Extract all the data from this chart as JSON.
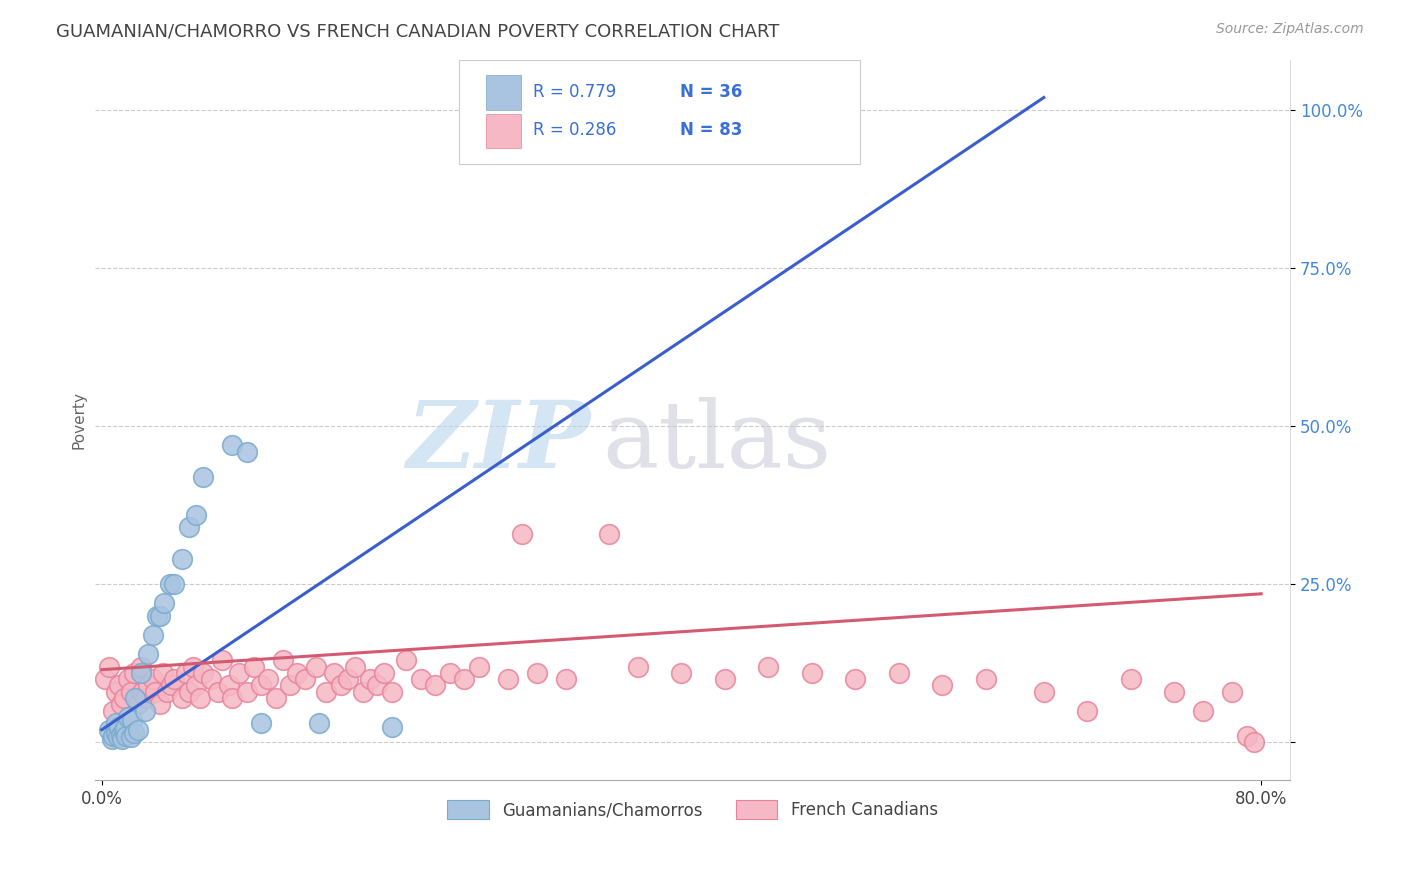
{
  "title": "GUAMANIAN/CHAMORRO VS FRENCH CANADIAN POVERTY CORRELATION CHART",
  "source": "Source: ZipAtlas.com",
  "ylabel": "Poverty",
  "legend_r_blue": "R = 0.779",
  "legend_n_blue": "N = 36",
  "legend_r_pink": "R = 0.286",
  "legend_n_pink": "N = 83",
  "blue_color": "#a8c4e0",
  "blue_edge_color": "#7aaace",
  "pink_color": "#f5b8c4",
  "pink_edge_color": "#e8849a",
  "blue_line_color": "#3a5fcd",
  "pink_line_color": "#d45a72",
  "legend_text_color": "#3a6fd8",
  "legend_label_blue": "Guamanians/Chamorros",
  "legend_label_pink": "French Canadians",
  "background_color": "#ffffff",
  "grid_color": "#cccccc",
  "title_color": "#444444",
  "axis_label_color": "#666666",
  "tick_color_right": "#4488dd",
  "blue_scatter_x": [
    0.005,
    0.007,
    0.008,
    0.01,
    0.01,
    0.011,
    0.012,
    0.013,
    0.014,
    0.015,
    0.016,
    0.017,
    0.018,
    0.02,
    0.021,
    0.022,
    0.023,
    0.025,
    0.027,
    0.03,
    0.032,
    0.035,
    0.038,
    0.04,
    0.043,
    0.047,
    0.05,
    0.055,
    0.06,
    0.065,
    0.07,
    0.09,
    0.1,
    0.11,
    0.15,
    0.2
  ],
  "blue_scatter_y": [
    0.02,
    0.005,
    0.01,
    0.015,
    0.03,
    0.008,
    0.025,
    0.012,
    0.005,
    0.018,
    0.022,
    0.01,
    0.04,
    0.008,
    0.035,
    0.015,
    0.07,
    0.02,
    0.11,
    0.05,
    0.14,
    0.17,
    0.2,
    0.2,
    0.22,
    0.25,
    0.25,
    0.29,
    0.34,
    0.36,
    0.42,
    0.47,
    0.46,
    0.03,
    0.03,
    0.025
  ],
  "pink_scatter_x": [
    0.002,
    0.005,
    0.008,
    0.01,
    0.012,
    0.013,
    0.015,
    0.018,
    0.02,
    0.022,
    0.025,
    0.027,
    0.028,
    0.03,
    0.032,
    0.035,
    0.037,
    0.04,
    0.042,
    0.045,
    0.048,
    0.05,
    0.055,
    0.058,
    0.06,
    0.063,
    0.065,
    0.068,
    0.07,
    0.075,
    0.08,
    0.083,
    0.088,
    0.09,
    0.095,
    0.1,
    0.105,
    0.11,
    0.115,
    0.12,
    0.125,
    0.13,
    0.135,
    0.14,
    0.148,
    0.155,
    0.16,
    0.165,
    0.17,
    0.175,
    0.18,
    0.185,
    0.19,
    0.195,
    0.2,
    0.21,
    0.22,
    0.23,
    0.24,
    0.25,
    0.26,
    0.28,
    0.29,
    0.3,
    0.32,
    0.35,
    0.37,
    0.4,
    0.43,
    0.46,
    0.49,
    0.52,
    0.55,
    0.58,
    0.61,
    0.65,
    0.68,
    0.71,
    0.74,
    0.76,
    0.78,
    0.79,
    0.795
  ],
  "pink_scatter_y": [
    0.1,
    0.12,
    0.05,
    0.08,
    0.09,
    0.06,
    0.07,
    0.1,
    0.08,
    0.11,
    0.06,
    0.12,
    0.08,
    0.07,
    0.09,
    0.1,
    0.08,
    0.06,
    0.11,
    0.08,
    0.09,
    0.1,
    0.07,
    0.11,
    0.08,
    0.12,
    0.09,
    0.07,
    0.11,
    0.1,
    0.08,
    0.13,
    0.09,
    0.07,
    0.11,
    0.08,
    0.12,
    0.09,
    0.1,
    0.07,
    0.13,
    0.09,
    0.11,
    0.1,
    0.12,
    0.08,
    0.11,
    0.09,
    0.1,
    0.12,
    0.08,
    0.1,
    0.09,
    0.11,
    0.08,
    0.13,
    0.1,
    0.09,
    0.11,
    0.1,
    0.12,
    0.1,
    0.33,
    0.11,
    0.1,
    0.33,
    0.12,
    0.11,
    0.1,
    0.12,
    0.11,
    0.1,
    0.11,
    0.09,
    0.1,
    0.08,
    0.05,
    0.1,
    0.08,
    0.05,
    0.08,
    0.01,
    0.0
  ],
  "blue_line_x0": 0.0,
  "blue_line_y0": 0.02,
  "blue_line_x1": 0.65,
  "blue_line_y1": 1.02,
  "pink_line_x0": 0.0,
  "pink_line_y0": 0.115,
  "pink_line_x1": 0.8,
  "pink_line_y1": 0.235,
  "xlim_min": -0.005,
  "xlim_max": 0.82,
  "ylim_min": -0.06,
  "ylim_max": 1.08,
  "ytick_values": [
    0.0,
    0.25,
    0.5,
    0.75,
    1.0
  ],
  "ytick_labels": [
    "",
    "25.0%",
    "50.0%",
    "75.0%",
    "100.0%"
  ],
  "xtick_values": [
    0.0,
    0.8
  ],
  "xtick_labels": [
    "0.0%",
    "80.0%"
  ]
}
